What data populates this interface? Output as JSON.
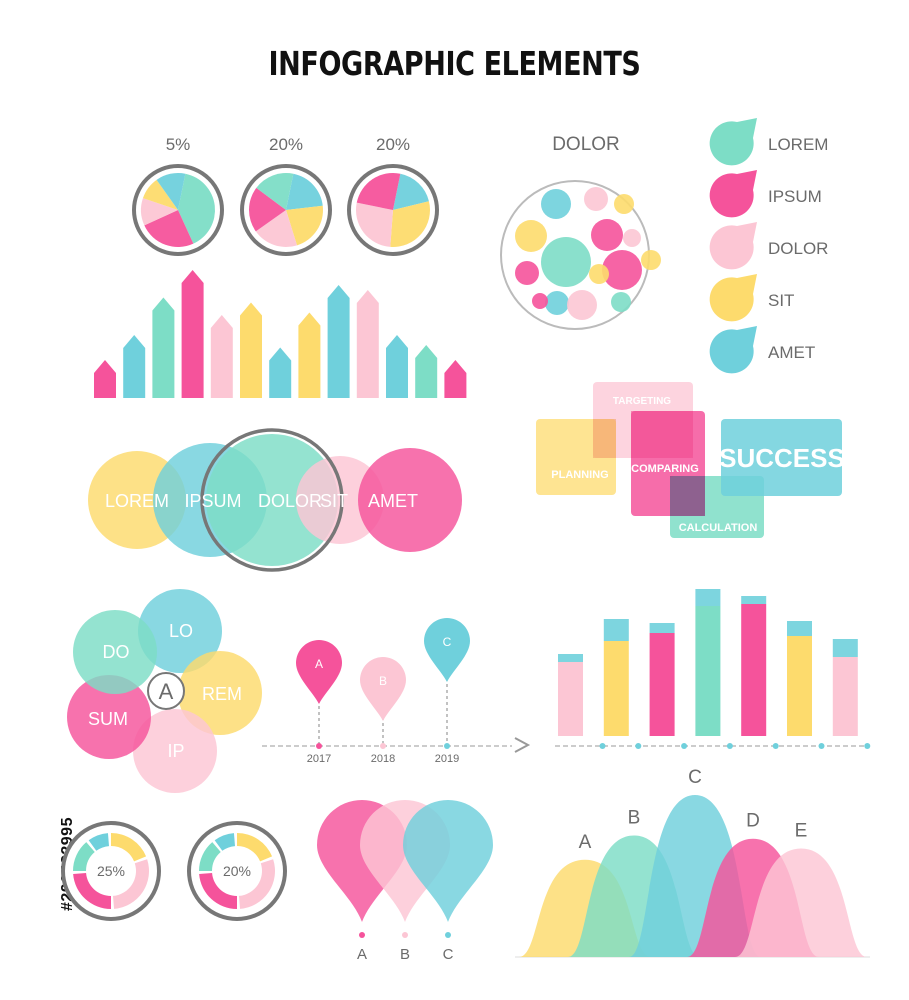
{
  "title": "INFOGRAPHIC ELEMENTS",
  "stock_id": "#206482995",
  "colors": {
    "mint": "#7DDDC6",
    "pink": "#F5539B",
    "blush": "#FCC6D4",
    "yellow": "#FDDB6D",
    "cyan": "#6FD0DC",
    "ring": "#777777"
  },
  "pies": [
    {
      "label": "5%",
      "slices": [
        {
          "color": "mint",
          "value": 40
        },
        {
          "color": "pink",
          "value": 25
        },
        {
          "color": "blush",
          "value": 12
        },
        {
          "color": "yellow",
          "value": 10
        },
        {
          "color": "cyan",
          "value": 13
        }
      ]
    },
    {
      "label": "20%",
      "slices": [
        {
          "color": "cyan",
          "value": 20
        },
        {
          "color": "yellow",
          "value": 22
        },
        {
          "color": "blush",
          "value": 20
        },
        {
          "color": "pink",
          "value": 20
        },
        {
          "color": "mint",
          "value": 18
        }
      ]
    },
    {
      "label": "20%",
      "slices": [
        {
          "color": "cyan",
          "value": 18
        },
        {
          "color": "yellow",
          "value": 30
        },
        {
          "color": "blush",
          "value": 27
        },
        {
          "color": "pink",
          "value": 25
        }
      ]
    }
  ],
  "arrow_bars": [
    {
      "color": "pink",
      "value": 1
    },
    {
      "color": "cyan",
      "value": 2
    },
    {
      "color": "mint",
      "value": 3.5
    },
    {
      "color": "pink",
      "value": 4.6
    },
    {
      "color": "blush",
      "value": 2.8
    },
    {
      "color": "yellow",
      "value": 3.3
    },
    {
      "color": "cyan",
      "value": 1.5
    },
    {
      "color": "yellow",
      "value": 2.9
    },
    {
      "color": "cyan",
      "value": 4
    },
    {
      "color": "blush",
      "value": 3.8
    },
    {
      "color": "cyan",
      "value": 2
    },
    {
      "color": "mint",
      "value": 1.6
    },
    {
      "color": "pink",
      "value": 1
    }
  ],
  "bubble_cluster": {
    "title": "DOLOR"
  },
  "legend": [
    {
      "label": "LOREM",
      "color": "mint"
    },
    {
      "label": "IPSUM",
      "color": "pink"
    },
    {
      "label": "DOLOR",
      "color": "blush"
    },
    {
      "label": "SIT",
      "color": "yellow"
    },
    {
      "label": "AMET",
      "color": "cyan"
    }
  ],
  "venn_row": [
    {
      "label": "LOREM",
      "color": "yellow"
    },
    {
      "label": "IPSUM",
      "color": "cyan"
    },
    {
      "label": "DOLOR",
      "color": "mint"
    },
    {
      "label": "SIT",
      "color": "blush"
    },
    {
      "label": "AMET",
      "color": "pink"
    }
  ],
  "process_boxes": [
    {
      "label": "TARGETING",
      "color": "blush"
    },
    {
      "label": "PLANNING",
      "color": "yellow"
    },
    {
      "label": "COMPARING",
      "color": "pink"
    },
    {
      "label": "CALCULATION",
      "color": "mint"
    },
    {
      "label": "SUCCESS",
      "color": "cyan"
    }
  ],
  "flower": {
    "center": "A",
    "petals": [
      {
        "label": "LO",
        "color": "cyan"
      },
      {
        "label": "REM",
        "color": "yellow"
      },
      {
        "label": "IP",
        "color": "blush"
      },
      {
        "label": "SUM",
        "color": "pink"
      },
      {
        "label": "DO",
        "color": "mint"
      }
    ]
  },
  "timeline": [
    {
      "pin": "A",
      "year": "2017",
      "color": "pink"
    },
    {
      "pin": "B",
      "year": "2018",
      "color": "blush"
    },
    {
      "pin": "C",
      "year": "2019",
      "color": "cyan"
    }
  ],
  "stacked_bars": [
    {
      "base": "blush",
      "base_value": 74,
      "cap_value": 8
    },
    {
      "base": "yellow",
      "base_value": 95,
      "cap_value": 22
    },
    {
      "base": "pink",
      "base_value": 103,
      "cap_value": 10
    },
    {
      "base": "mint",
      "base_value": 130,
      "cap_value": 17
    },
    {
      "base": "pink",
      "base_value": 132,
      "cap_value": 8
    },
    {
      "base": "yellow",
      "base_value": 100,
      "cap_value": 15
    },
    {
      "base": "blush",
      "base_value": 79,
      "cap_value": 18
    }
  ],
  "donuts": [
    {
      "label": "25%"
    },
    {
      "label": "20%"
    }
  ],
  "drops": [
    {
      "label": "A",
      "color": "pink"
    },
    {
      "label": "B",
      "color": "blush"
    },
    {
      "label": "C",
      "color": "cyan"
    }
  ],
  "waves": [
    {
      "label": "A",
      "color": "yellow",
      "value": 0.6
    },
    {
      "label": "B",
      "color": "mint",
      "value": 0.75
    },
    {
      "label": "C",
      "color": "cyan",
      "value": 1.0
    },
    {
      "label": "D",
      "color": "pink",
      "value": 0.73
    },
    {
      "label": "E",
      "color": "blush",
      "value": 0.67
    }
  ]
}
